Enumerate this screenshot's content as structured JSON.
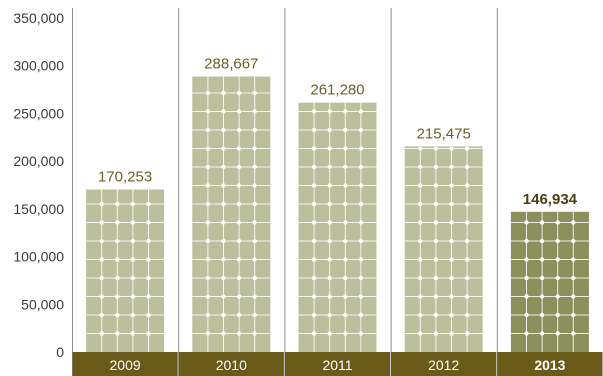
{
  "chart_data": {
    "type": "bar",
    "title": "",
    "xlabel": "",
    "ylabel": "",
    "categories": [
      "2009",
      "2010",
      "2011",
      "2012",
      "2013"
    ],
    "values": [
      170253,
      288667,
      261280,
      215475,
      146934
    ],
    "value_labels": [
      "170,253",
      "288,667",
      "261,280",
      "215,475",
      "146,934"
    ],
    "highlight_index": 4,
    "ylim": [
      0,
      350000
    ],
    "yticks": [
      0,
      50000,
      100000,
      150000,
      200000,
      250000,
      300000,
      350000
    ],
    "ytick_labels": [
      "0",
      "50,000",
      "100,000",
      "150,000",
      "200,000",
      "250,000",
      "300,000",
      "350,000"
    ],
    "grid": false,
    "legend": "none",
    "colors": {
      "bar": "#bcbf9b",
      "bar_highlight": "#8b905c",
      "panel_line": "#8c8c8c",
      "axis_band": "#6a5a1a",
      "value_label": "#6b5f2a",
      "value_label_highlight": "#4a3f10",
      "bar_pattern": "#ffffff"
    }
  }
}
